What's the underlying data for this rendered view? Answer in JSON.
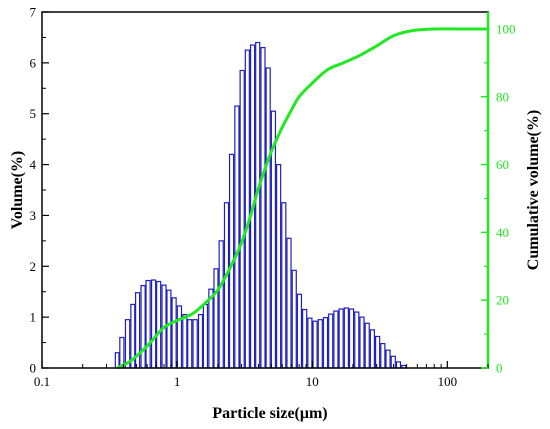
{
  "chart_data": {
    "type": "bar",
    "xlabel": "Particle size(μm)",
    "ylabel": "Volume(%)",
    "y2label": "Cumulative volume(%)",
    "x_scale": "log",
    "xlim": [
      0.1,
      200
    ],
    "ylim": [
      0,
      7
    ],
    "y2lim": [
      0,
      105
    ],
    "x_ticks": [
      0.1,
      1,
      10,
      100
    ],
    "x_tick_labels": [
      "0.1",
      "1",
      "10",
      "100"
    ],
    "y_ticks": [
      0,
      1,
      2,
      3,
      4,
      5,
      6,
      7
    ],
    "y_tick_labels": [
      "0",
      "1",
      "2",
      "3",
      "4",
      "5",
      "6",
      "7"
    ],
    "y2_ticks": [
      0,
      20,
      40,
      60,
      80,
      100
    ],
    "y2_tick_labels": [
      "0",
      "20",
      "40",
      "60",
      "80",
      "100"
    ],
    "colors": {
      "bars": "#1f1fbf",
      "cumulative": "#22e822",
      "axis": "#000000"
    },
    "series": [
      {
        "type": "bar",
        "axis": "left",
        "x": [
          0.36,
          0.39,
          0.43,
          0.47,
          0.51,
          0.56,
          0.61,
          0.67,
          0.73,
          0.8,
          0.87,
          0.95,
          1.04,
          1.14,
          1.24,
          1.36,
          1.49,
          1.62,
          1.78,
          1.94,
          2.12,
          2.32,
          2.53,
          2.77,
          3.03,
          3.31,
          3.62,
          3.95,
          4.32,
          4.72,
          5.16,
          5.64,
          6.16,
          6.73,
          7.36,
          8.04,
          8.79,
          9.61,
          10.5,
          11.47,
          12.54,
          13.7,
          14.98,
          16.37,
          17.89,
          19.55,
          21.37,
          23.35,
          25.52,
          27.89,
          30.48,
          33.32,
          36.41,
          39.79,
          43.49,
          47.53,
          51.95,
          56.77,
          62.04,
          67.81,
          74.11,
          81.0,
          88.52
        ],
        "values": [
          0.3,
          0.6,
          0.95,
          1.25,
          1.48,
          1.62,
          1.72,
          1.73,
          1.7,
          1.63,
          1.53,
          1.38,
          1.22,
          1.05,
          0.95,
          0.95,
          1.05,
          1.25,
          1.55,
          1.95,
          2.5,
          3.25,
          4.2,
          5.15,
          5.85,
          6.25,
          6.35,
          6.4,
          6.3,
          5.9,
          5.05,
          4.0,
          3.25,
          2.55,
          1.92,
          1.45,
          1.15,
          0.98,
          0.92,
          0.95,
          0.99,
          1.06,
          1.12,
          1.16,
          1.18,
          1.16,
          1.1,
          1.0,
          0.88,
          0.75,
          0.62,
          0.48,
          0.35,
          0.23,
          0.12,
          0.05,
          0.0,
          0.0,
          0.0,
          0.0,
          0.0,
          0.0,
          0.0
        ]
      },
      {
        "type": "line",
        "axis": "right",
        "x": [
          0.36,
          0.45,
          0.55,
          0.65,
          0.8,
          1.0,
          1.3,
          1.6,
          2.0,
          2.5,
          3.0,
          3.5,
          4.0,
          4.5,
          5.0,
          6.0,
          7.0,
          8.0,
          10.0,
          13.0,
          17.0,
          22.0,
          30.0,
          40.0,
          55.0,
          80.0,
          120.0,
          200.0
        ],
        "values": [
          0,
          2,
          5,
          8,
          12,
          14,
          16,
          19,
          23,
          30,
          37,
          45,
          53,
          59,
          64,
          71,
          76,
          80,
          84,
          88,
          90,
          92,
          95,
          98,
          99.5,
          100,
          100,
          100
        ]
      }
    ]
  }
}
